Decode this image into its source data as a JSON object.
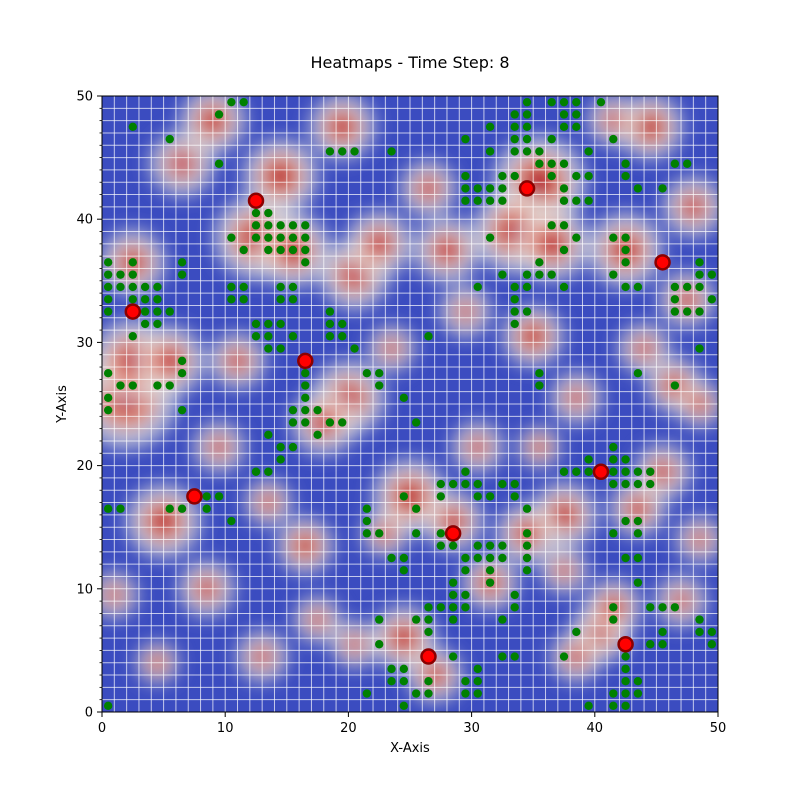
{
  "chart_data": {
    "type": "heatmap",
    "title": "Heatmaps - Time Step: 8",
    "xlabel": "X-Axis",
    "ylabel": "Y-Axis",
    "xlim": [
      0,
      50
    ],
    "ylim": [
      0,
      50
    ],
    "x_ticks": [
      0,
      10,
      20,
      30,
      40,
      50
    ],
    "y_ticks": [
      0,
      10,
      20,
      30,
      40,
      50
    ],
    "grid": true,
    "colormap": "coolwarm",
    "colors": {
      "low": "#3b4cc0",
      "mid": "#dddddd",
      "high": "#b40426",
      "grid": "#ffffff",
      "green_points": "#008000",
      "red_points": "#ff0000",
      "red_edge": "#8b0000"
    },
    "hotspots": [
      [
        14.5,
        43.5,
        1.6,
        1
      ],
      [
        12.5,
        38.5,
        1.8,
        1
      ],
      [
        15.5,
        37.5,
        1.6,
        0.9
      ],
      [
        2.5,
        36.5,
        1.4,
        0.8
      ],
      [
        2.0,
        25.5,
        2.2,
        1
      ],
      [
        2.5,
        28.5,
        1.8,
        0.9
      ],
      [
        5.5,
        28.5,
        1.5,
        0.8
      ],
      [
        5.0,
        15.5,
        1.6,
        0.9
      ],
      [
        16.5,
        13.5,
        1.2,
        1
      ],
      [
        25.0,
        17.5,
        1.6,
        1
      ],
      [
        28.5,
        15.5,
        1.3,
        0.8
      ],
      [
        35.0,
        30.5,
        1.3,
        1
      ],
      [
        35.5,
        43.0,
        2.0,
        1
      ],
      [
        33.5,
        39.0,
        1.8,
        1
      ],
      [
        36.5,
        38.0,
        1.6,
        0.9
      ],
      [
        44.5,
        47.5,
        1.4,
        1
      ],
      [
        42.5,
        37.5,
        1.6,
        0.9
      ],
      [
        46.5,
        26.5,
        1.2,
        0.9
      ],
      [
        40.5,
        6.5,
        1.3,
        1
      ],
      [
        41.5,
        8.5,
        1.2,
        0.9
      ],
      [
        43.5,
        16.5,
        1.2,
        0.8
      ],
      [
        37.5,
        16.0,
        1.4,
        0.9
      ],
      [
        31.5,
        10.5,
        1.2,
        0.8
      ],
      [
        34.5,
        14.5,
        1.3,
        0.8
      ],
      [
        24.5,
        6.0,
        1.4,
        0.9
      ],
      [
        20.0,
        25.5,
        1.6,
        0.8
      ],
      [
        18.0,
        23.5,
        1.4,
        0.7
      ],
      [
        20.5,
        35.5,
        1.5,
        0.8
      ],
      [
        22.5,
        38.0,
        1.4,
        0.8
      ],
      [
        19.5,
        47.5,
        1.4,
        0.9
      ],
      [
        9.0,
        48.0,
        1.4,
        0.9
      ],
      [
        28.0,
        37.5,
        1.4,
        0.8
      ],
      [
        47.5,
        33.5,
        1.2,
        0.7
      ],
      [
        48.0,
        41.0,
        1.3,
        0.7
      ],
      [
        11.0,
        28.5,
        1.2,
        0.7
      ],
      [
        8.5,
        10.0,
        1.2,
        0.7
      ],
      [
        4.5,
        4.0,
        0.9,
        0.8
      ],
      [
        13.5,
        17.0,
        1.0,
        0.7
      ],
      [
        45.5,
        19.5,
        1.2,
        0.7
      ],
      [
        48.5,
        25.0,
        1.0,
        0.8
      ],
      [
        27.0,
        3.0,
        1.2,
        0.8
      ],
      [
        38.5,
        4.5,
        1.1,
        0.7
      ],
      [
        23.0,
        14.5,
        1.0,
        0.7
      ],
      [
        30.5,
        21.5,
        1.1,
        0.6
      ],
      [
        38.5,
        25.5,
        1.1,
        0.6
      ],
      [
        9.5,
        21.5,
        1.1,
        0.6
      ],
      [
        26.5,
        42.5,
        1.2,
        0.7
      ],
      [
        41.5,
        48.0,
        1.1,
        0.6
      ],
      [
        47.0,
        9.0,
        1.1,
        0.6
      ],
      [
        13.0,
        4.5,
        1.1,
        0.6
      ],
      [
        1.0,
        9.5,
        1.0,
        0.6
      ],
      [
        35.5,
        21.5,
        0.9,
        0.8
      ],
      [
        20.5,
        5.5,
        1.0,
        0.6
      ],
      [
        44.0,
        29.5,
        1.1,
        0.6
      ],
      [
        6.5,
        44.5,
        1.4,
        0.6
      ],
      [
        23.5,
        29.5,
        1.0,
        0.6
      ],
      [
        29.5,
        32.5,
        1.1,
        0.5
      ],
      [
        48.5,
        14.0,
        1.0,
        0.6
      ],
      [
        37.5,
        11.5,
        1.0,
        0.6
      ],
      [
        17.5,
        7.5,
        1.0,
        0.6
      ]
    ],
    "green_points": [
      [
        11.5,
        49.5
      ],
      [
        10.5,
        49.5
      ],
      [
        9.5,
        48.5
      ],
      [
        2.5,
        47.5
      ],
      [
        5.5,
        46.5
      ],
      [
        9.5,
        44.5
      ],
      [
        10.5,
        38.5
      ],
      [
        12.5,
        40.5
      ],
      [
        13.5,
        40.5
      ],
      [
        12.5,
        39.5
      ],
      [
        13.5,
        39.5
      ],
      [
        14.5,
        39.5
      ],
      [
        15.5,
        39.5
      ],
      [
        16.5,
        39.5
      ],
      [
        12.5,
        38.5
      ],
      [
        13.5,
        38.5
      ],
      [
        14.5,
        38.5
      ],
      [
        15.5,
        38.5
      ],
      [
        16.5,
        38.5
      ],
      [
        13.5,
        37.5
      ],
      [
        14.5,
        37.5
      ],
      [
        15.5,
        37.5
      ],
      [
        16.5,
        37.5
      ],
      [
        11.5,
        37.5
      ],
      [
        16.5,
        36.5
      ],
      [
        0.5,
        36.5
      ],
      [
        2.5,
        36.5
      ],
      [
        0.5,
        35.5
      ],
      [
        1.5,
        35.5
      ],
      [
        2.5,
        35.5
      ],
      [
        6.5,
        36.5
      ],
      [
        6.5,
        35.5
      ],
      [
        0.5,
        34.5
      ],
      [
        1.5,
        34.5
      ],
      [
        2.5,
        34.5
      ],
      [
        3.5,
        34.5
      ],
      [
        4.5,
        34.5
      ],
      [
        0.5,
        33.5
      ],
      [
        2.5,
        33.5
      ],
      [
        3.5,
        33.5
      ],
      [
        4.5,
        33.5
      ],
      [
        0.5,
        32.5
      ],
      [
        3.5,
        32.5
      ],
      [
        4.5,
        32.5
      ],
      [
        5.5,
        32.5
      ],
      [
        3.5,
        31.5
      ],
      [
        4.5,
        31.5
      ],
      [
        2.5,
        30.5
      ],
      [
        10.5,
        34.5
      ],
      [
        11.5,
        34.5
      ],
      [
        10.5,
        33.5
      ],
      [
        11.5,
        33.5
      ],
      [
        14.5,
        34.5
      ],
      [
        15.5,
        34.5
      ],
      [
        14.5,
        33.5
      ],
      [
        15.5,
        33.5
      ],
      [
        12.5,
        31.5
      ],
      [
        13.5,
        31.5
      ],
      [
        14.5,
        31.5
      ],
      [
        12.5,
        30.5
      ],
      [
        13.5,
        30.5
      ],
      [
        15.5,
        30.5
      ],
      [
        13.5,
        29.5
      ],
      [
        14.5,
        29.5
      ],
      [
        18.5,
        32.5
      ],
      [
        18.5,
        31.5
      ],
      [
        19.5,
        31.5
      ],
      [
        18.5,
        30.5
      ],
      [
        19.5,
        30.5
      ],
      [
        20.5,
        29.5
      ],
      [
        0.5,
        27.5
      ],
      [
        6.5,
        28.5
      ],
      [
        6.5,
        27.5
      ],
      [
        1.5,
        26.5
      ],
      [
        2.5,
        26.5
      ],
      [
        4.5,
        26.5
      ],
      [
        5.5,
        26.5
      ],
      [
        0.5,
        25.5
      ],
      [
        0.5,
        24.5
      ],
      [
        6.5,
        24.5
      ],
      [
        16.5,
        27.5
      ],
      [
        16.5,
        26.5
      ],
      [
        16.5,
        25.5
      ],
      [
        15.5,
        24.5
      ],
      [
        16.5,
        24.5
      ],
      [
        17.5,
        24.5
      ],
      [
        15.5,
        23.5
      ],
      [
        16.5,
        23.5
      ],
      [
        18.5,
        23.5
      ],
      [
        19.5,
        23.5
      ],
      [
        17.5,
        22.5
      ],
      [
        13.5,
        22.5
      ],
      [
        14.5,
        21.5
      ],
      [
        15.5,
        21.5
      ],
      [
        14.5,
        20.5
      ],
      [
        12.5,
        19.5
      ],
      [
        13.5,
        19.5
      ],
      [
        21.5,
        27.5
      ],
      [
        22.5,
        27.5
      ],
      [
        22.5,
        26.5
      ],
      [
        24.5,
        25.5
      ],
      [
        25.5,
        23.5
      ],
      [
        0.5,
        16.5
      ],
      [
        1.5,
        16.5
      ],
      [
        7.5,
        17.5
      ],
      [
        8.5,
        17.5
      ],
      [
        9.5,
        17.5
      ],
      [
        8.5,
        16.5
      ],
      [
        5.5,
        16.5
      ],
      [
        6.5,
        16.5
      ],
      [
        10.5,
        15.5
      ],
      [
        21.5,
        16.5
      ],
      [
        21.5,
        15.5
      ],
      [
        21.5,
        14.5
      ],
      [
        22.5,
        14.5
      ],
      [
        23.5,
        12.5
      ],
      [
        24.5,
        12.5
      ],
      [
        24.5,
        11.5
      ],
      [
        22.5,
        7.5
      ],
      [
        22.5,
        5.5
      ],
      [
        23.5,
        3.5
      ],
      [
        24.5,
        3.5
      ],
      [
        23.5,
        2.5
      ],
      [
        24.5,
        2.5
      ],
      [
        21.5,
        1.5
      ],
      [
        24.5,
        0.5
      ],
      [
        27.5,
        18.5
      ],
      [
        28.5,
        18.5
      ],
      [
        29.5,
        18.5
      ],
      [
        27.5,
        17.5
      ],
      [
        29.5,
        19.5
      ],
      [
        30.5,
        18.5
      ],
      [
        30.5,
        17.5
      ],
      [
        31.5,
        17.5
      ],
      [
        32.5,
        18.5
      ],
      [
        33.5,
        18.5
      ],
      [
        33.5,
        17.5
      ],
      [
        25.5,
        16.5
      ],
      [
        27.5,
        14.5
      ],
      [
        27.5,
        13.5
      ],
      [
        28.5,
        13.5
      ],
      [
        29.5,
        12.5
      ],
      [
        29.5,
        11.5
      ],
      [
        30.5,
        13.5
      ],
      [
        31.5,
        13.5
      ],
      [
        32.5,
        13.5
      ],
      [
        30.5,
        12.5
      ],
      [
        31.5,
        12.5
      ],
      [
        32.5,
        12.5
      ],
      [
        31.5,
        11.5
      ],
      [
        31.5,
        10.5
      ],
      [
        28.5,
        10.5
      ],
      [
        28.5,
        9.5
      ],
      [
        28.5,
        8.5
      ],
      [
        29.5,
        8.5
      ],
      [
        29.5,
        9.5
      ],
      [
        27.5,
        8.5
      ],
      [
        26.5,
        8.5
      ],
      [
        25.5,
        7.5
      ],
      [
        26.5,
        7.5
      ],
      [
        28.5,
        7.5
      ],
      [
        26.5,
        6.5
      ],
      [
        32.5,
        7.5
      ],
      [
        33.5,
        9.5
      ],
      [
        33.5,
        8.5
      ],
      [
        34.5,
        14.5
      ],
      [
        34.5,
        13.5
      ],
      [
        34.5,
        12.5
      ],
      [
        34.5,
        11.5
      ],
      [
        34.5,
        16.5
      ],
      [
        32.5,
        4.5
      ],
      [
        33.5,
        4.5
      ],
      [
        28.5,
        4.5
      ],
      [
        30.5,
        3.5
      ],
      [
        29.5,
        2.5
      ],
      [
        30.5,
        2.5
      ],
      [
        30.5,
        1.5
      ],
      [
        29.5,
        1.5
      ],
      [
        26.5,
        2.5
      ],
      [
        26.5,
        1.5
      ],
      [
        25.5,
        1.5
      ],
      [
        30.5,
        42.5
      ],
      [
        29.5,
        42.5
      ],
      [
        29.5,
        43.5
      ],
      [
        30.5,
        41.5
      ],
      [
        29.5,
        41.5
      ],
      [
        31.5,
        42.5
      ],
      [
        32.5,
        42.5
      ],
      [
        31.5,
        41.5
      ],
      [
        32.5,
        41.5
      ],
      [
        32.5,
        43.5
      ],
      [
        33.5,
        43.5
      ],
      [
        31.5,
        38.5
      ],
      [
        29.5,
        46.5
      ],
      [
        31.5,
        47.5
      ],
      [
        31.5,
        45.5
      ],
      [
        33.5,
        48.5
      ],
      [
        33.5,
        47.5
      ],
      [
        33.5,
        46.5
      ],
      [
        34.5,
        46.5
      ],
      [
        34.5,
        48.5
      ],
      [
        34.5,
        47.5
      ],
      [
        34.5,
        49.5
      ],
      [
        33.5,
        45.5
      ],
      [
        34.5,
        45.5
      ],
      [
        35.5,
        45.5
      ],
      [
        36.5,
        46.5
      ],
      [
        36.5,
        49.5
      ],
      [
        37.5,
        49.5
      ],
      [
        38.5,
        49.5
      ],
      [
        37.5,
        48.5
      ],
      [
        38.5,
        48.5
      ],
      [
        37.5,
        47.5
      ],
      [
        38.5,
        47.5
      ],
      [
        40.5,
        49.5
      ],
      [
        41.5,
        46.5
      ],
      [
        39.5,
        45.5
      ],
      [
        35.5,
        44.5
      ],
      [
        36.5,
        44.5
      ],
      [
        37.5,
        44.5
      ],
      [
        36.5,
        43.5
      ],
      [
        37.5,
        42.5
      ],
      [
        38.5,
        43.5
      ],
      [
        39.5,
        43.5
      ],
      [
        39.5,
        41.5
      ],
      [
        38.5,
        41.5
      ],
      [
        37.5,
        41.5
      ],
      [
        36.5,
        39.5
      ],
      [
        37.5,
        39.5
      ],
      [
        38.5,
        38.5
      ],
      [
        37.5,
        37.5
      ],
      [
        35.5,
        36.5
      ],
      [
        35.5,
        35.5
      ],
      [
        36.5,
        35.5
      ],
      [
        37.5,
        34.5
      ],
      [
        34.5,
        35.5
      ],
      [
        32.5,
        35.5
      ],
      [
        33.5,
        34.5
      ],
      [
        34.5,
        34.5
      ],
      [
        33.5,
        33.5
      ],
      [
        33.5,
        32.5
      ],
      [
        34.5,
        32.5
      ],
      [
        33.5,
        31.5
      ],
      [
        30.5,
        34.5
      ],
      [
        35.5,
        27.5
      ],
      [
        35.5,
        26.5
      ],
      [
        42.5,
        44.5
      ],
      [
        42.5,
        43.5
      ],
      [
        43.5,
        42.5
      ],
      [
        45.5,
        42.5
      ],
      [
        46.5,
        44.5
      ],
      [
        47.5,
        44.5
      ],
      [
        41.5,
        38.5
      ],
      [
        42.5,
        38.5
      ],
      [
        42.5,
        37.5
      ],
      [
        42.5,
        36.5
      ],
      [
        41.5,
        35.5
      ],
      [
        42.5,
        34.5
      ],
      [
        43.5,
        34.5
      ],
      [
        46.5,
        34.5
      ],
      [
        47.5,
        34.5
      ],
      [
        46.5,
        33.5
      ],
      [
        48.5,
        36.5
      ],
      [
        48.5,
        35.5
      ],
      [
        49.5,
        35.5
      ],
      [
        48.5,
        34.5
      ],
      [
        49.5,
        33.5
      ],
      [
        46.5,
        32.5
      ],
      [
        47.5,
        32.5
      ],
      [
        48.5,
        32.5
      ],
      [
        48.5,
        29.5
      ],
      [
        43.5,
        27.5
      ],
      [
        46.5,
        26.5
      ],
      [
        41.5,
        21.5
      ],
      [
        41.5,
        20.5
      ],
      [
        42.5,
        20.5
      ],
      [
        41.5,
        19.5
      ],
      [
        42.5,
        19.5
      ],
      [
        43.5,
        19.5
      ],
      [
        44.5,
        19.5
      ],
      [
        39.5,
        20.5
      ],
      [
        41.5,
        18.5
      ],
      [
        42.5,
        18.5
      ],
      [
        43.5,
        18.5
      ],
      [
        44.5,
        18.5
      ],
      [
        38.5,
        19.5
      ],
      [
        37.5,
        19.5
      ],
      [
        42.5,
        15.5
      ],
      [
        43.5,
        15.5
      ],
      [
        41.5,
        14.5
      ],
      [
        43.5,
        14.5
      ],
      [
        42.5,
        12.5
      ],
      [
        43.5,
        12.5
      ],
      [
        43.5,
        10.5
      ],
      [
        41.5,
        7.5
      ],
      [
        41.5,
        8.5
      ],
      [
        42.5,
        4.5
      ],
      [
        42.5,
        3.5
      ],
      [
        42.5,
        2.5
      ],
      [
        43.5,
        2.5
      ],
      [
        42.5,
        1.5
      ],
      [
        43.5,
        1.5
      ],
      [
        41.5,
        1.5
      ],
      [
        42.5,
        0.5
      ],
      [
        41.5,
        0.5
      ],
      [
        39.5,
        0.5
      ],
      [
        44.5,
        5.5
      ],
      [
        45.5,
        5.5
      ],
      [
        45.5,
        6.5
      ],
      [
        44.5,
        8.5
      ],
      [
        45.5,
        8.5
      ],
      [
        46.5,
        8.5
      ],
      [
        48.5,
        7.5
      ],
      [
        48.5,
        6.5
      ],
      [
        49.5,
        6.5
      ],
      [
        38.5,
        6.5
      ],
      [
        37.5,
        4.5
      ],
      [
        39.5,
        19.5
      ],
      [
        49.5,
        5.5
      ],
      [
        0.5,
        0.5
      ],
      [
        18.5,
        45.5
      ],
      [
        19.5,
        45.5
      ],
      [
        20.5,
        45.5
      ],
      [
        23.5,
        45.5
      ],
      [
        26.5,
        30.5
      ],
      [
        24.5,
        17.5
      ],
      [
        25.5,
        14.5
      ]
    ],
    "red_points": [
      [
        12.5,
        41.5
      ],
      [
        34.5,
        42.5
      ],
      [
        45.5,
        36.5
      ],
      [
        2.5,
        32.5
      ],
      [
        16.5,
        28.5
      ],
      [
        7.5,
        17.5
      ],
      [
        40.5,
        19.5
      ],
      [
        28.5,
        14.5
      ],
      [
        26.5,
        4.5
      ],
      [
        42.5,
        5.5
      ]
    ]
  }
}
